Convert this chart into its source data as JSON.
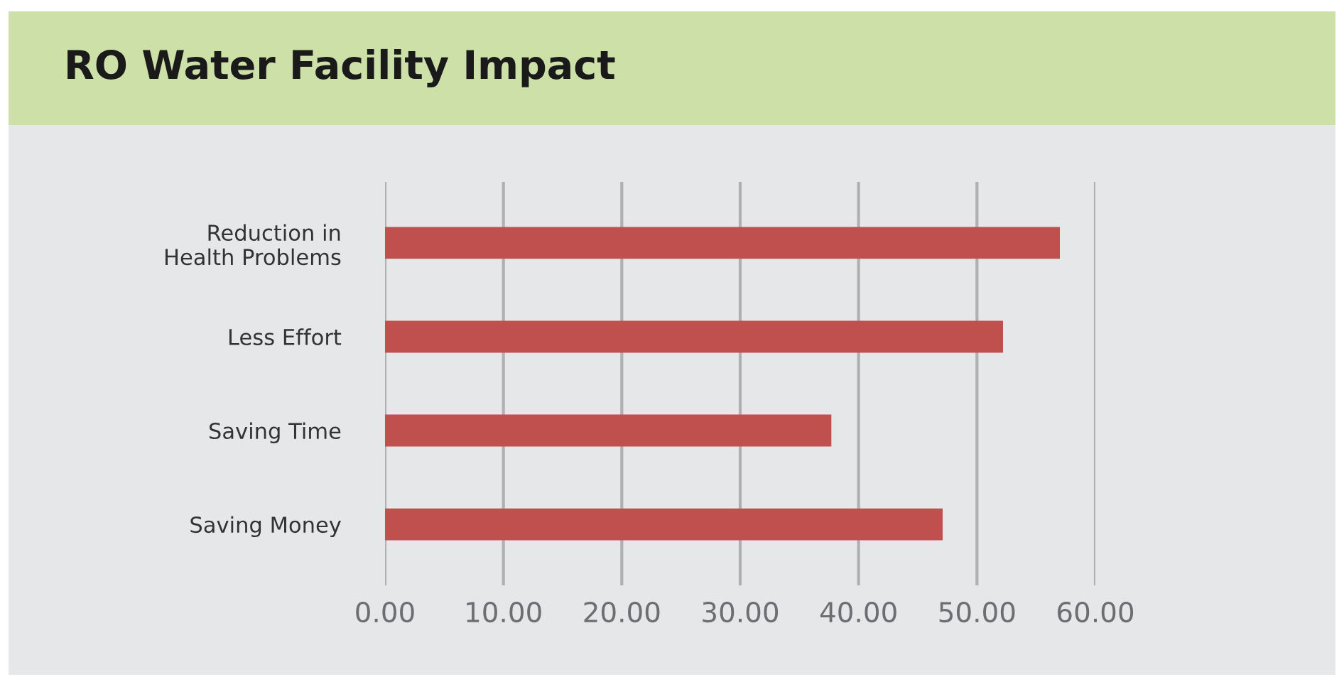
{
  "chart_data": {
    "type": "bar",
    "orientation": "horizontal",
    "title": "RO Water Facility Impact",
    "categories": [
      "Reduction in\nHealth Problems",
      "Less Effort",
      "Saving Time",
      "Saving Money"
    ],
    "values": [
      57.0,
      52.2,
      37.7,
      47.1
    ],
    "color": "#c0504d",
    "xlim": [
      0,
      60
    ],
    "xticks": [
      {
        "value": 0,
        "label": "0.00"
      },
      {
        "value": 10,
        "label": "10.00"
      },
      {
        "value": 20,
        "label": "20.00"
      },
      {
        "value": 30,
        "label": "30.00"
      },
      {
        "value": 40,
        "label": "40.00"
      },
      {
        "value": 50,
        "label": "50.00"
      },
      {
        "value": 60,
        "label": "60.00"
      }
    ],
    "grid": "x"
  }
}
